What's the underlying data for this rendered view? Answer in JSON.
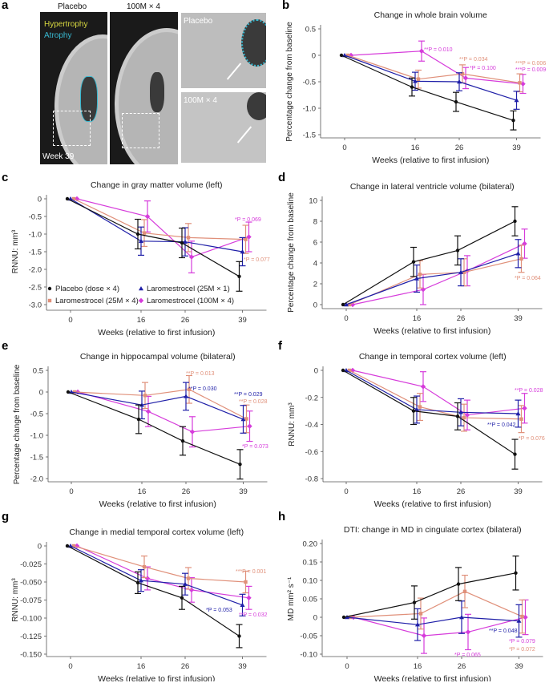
{
  "colors": {
    "placebo": "#111111",
    "lar25x1": "#1f1fa8",
    "lar25x4": "#e0907a",
    "lar100x4": "#d63cdb",
    "hypertrophy": "#d8d840",
    "atrophy": "#38b8d0"
  },
  "panel_a": {
    "label": "a",
    "col1_title": "Placebo",
    "col2_title": "100M × 4",
    "legend_hypertrophy": "Hypertrophy",
    "legend_atrophy": "Atrophy",
    "timepoint": "Week 39",
    "inset_top_label": "Placebo",
    "inset_bottom_label": "100M × 4"
  },
  "legend": [
    {
      "key": "placebo",
      "label": "Placebo (dose × 4)",
      "marker": "circle"
    },
    {
      "key": "lar25x1",
      "label": "Laromestrocel (25M × 1)",
      "marker": "triangle"
    },
    {
      "key": "lar25x4",
      "label": "Laromestrocel (25M × 4)",
      "marker": "square"
    },
    {
      "key": "lar100x4",
      "label": "Laromestrocel (100M × 4)",
      "marker": "diamond"
    }
  ],
  "chart_data": [
    {
      "panel": "b",
      "type": "line",
      "title": "Change in whole brain volume",
      "xlabel": "Weeks (relative to first infusion)",
      "ylabel": "Percentage change from baseline",
      "x": [
        0,
        16,
        26,
        39
      ],
      "xticks": [
        "0",
        "16",
        "26",
        "39"
      ],
      "ylim": [
        -1.5,
        0.5
      ],
      "yticks": [
        0.5,
        0,
        -0.5,
        -1.0,
        -1.5
      ],
      "yticklabels": [
        "0.5",
        "0",
        "-0.5",
        "-1.0",
        "-1.5"
      ],
      "series": [
        {
          "key": "placebo",
          "values": [
            0,
            -0.6,
            -0.88,
            -1.23
          ],
          "err": [
            0,
            0.17,
            0.18,
            0.18
          ]
        },
        {
          "key": "lar25x1",
          "values": [
            0,
            -0.49,
            -0.5,
            -0.85
          ],
          "err": [
            0,
            0.17,
            0.17,
            0.17
          ]
        },
        {
          "key": "lar25x4",
          "values": [
            0,
            -0.45,
            -0.35,
            -0.52
          ],
          "err": [
            0,
            0.17,
            0.17,
            0.17
          ]
        },
        {
          "key": "lar100x4",
          "values": [
            0,
            0.08,
            -0.43,
            -0.54
          ],
          "err": [
            0,
            0.19,
            0.2,
            0.18
          ]
        }
      ],
      "annotations": [
        {
          "text": "**P = 0.010",
          "key": "lar100x4"
        },
        {
          "text": "**P = 0.034",
          "key": "lar25x4"
        },
        {
          "text": "*P = 0.100",
          "key": "lar100x4"
        },
        {
          "text": "***P = 0.006",
          "key": "lar25x4"
        },
        {
          "text": "***P = 0.009",
          "key": "lar100x4"
        }
      ]
    },
    {
      "panel": "c",
      "type": "line",
      "title": "Change in gray matter volume (left)",
      "xlabel": "Weeks (relative to first infusion)",
      "ylabel": "RNNU: mm³",
      "x": [
        0,
        16,
        26,
        39
      ],
      "xticks": [
        "0",
        "16",
        "26",
        "39"
      ],
      "ylim": [
        -3.0,
        0
      ],
      "yticks": [
        0,
        -0.5,
        -1.0,
        -1.5,
        -2.0,
        -2.5,
        -3.0
      ],
      "yticklabels": [
        "0",
        "-0.5",
        "-1.0",
        "-1.5",
        "-2.0",
        "-2.5",
        "-3.0"
      ],
      "series": [
        {
          "key": "placebo",
          "values": [
            0,
            -1.0,
            -1.25,
            -2.2
          ],
          "err": [
            0,
            0.42,
            0.42,
            0.42
          ]
        },
        {
          "key": "lar25x1",
          "values": [
            0,
            -1.2,
            -1.22,
            -1.5
          ],
          "err": [
            0,
            0.4,
            0.4,
            0.4
          ]
        },
        {
          "key": "lar25x4",
          "values": [
            0,
            -0.97,
            -1.1,
            -1.15
          ],
          "err": [
            0,
            0.38,
            0.4,
            0.4
          ]
        },
        {
          "key": "lar100x4",
          "values": [
            0,
            -0.5,
            -1.65,
            -1.08
          ],
          "err": [
            0,
            0.44,
            0.45,
            0.42
          ]
        }
      ],
      "annotations": [
        {
          "text": "*P = 0.069",
          "key": "lar100x4"
        },
        {
          "text": "*P = 0.077",
          "key": "lar25x4"
        }
      ],
      "legend": "bottom-left"
    },
    {
      "panel": "d",
      "type": "line",
      "title": "Change in lateral ventricle volume (bilateral)",
      "xlabel": "Weeks (relative to first infusion)",
      "ylabel": "Percentage change from baseline",
      "x": [
        0,
        16,
        26,
        39
      ],
      "xticks": [
        "0",
        "16",
        "26",
        "39"
      ],
      "ylim": [
        0,
        10
      ],
      "yticks": [
        10,
        8,
        6,
        4,
        2,
        0
      ],
      "yticklabels": [
        "10",
        "8",
        "6",
        "4",
        "2",
        "0"
      ],
      "series": [
        {
          "key": "placebo",
          "values": [
            0,
            4.1,
            5.2,
            8.0
          ],
          "err": [
            0,
            1.4,
            1.4,
            1.4
          ]
        },
        {
          "key": "lar25x1",
          "values": [
            0,
            2.5,
            3.1,
            4.9
          ],
          "err": [
            0,
            1.3,
            1.3,
            1.35
          ]
        },
        {
          "key": "lar25x4",
          "values": [
            0,
            2.9,
            3.1,
            4.4
          ],
          "err": [
            0,
            1.3,
            1.3,
            1.3
          ]
        },
        {
          "key": "lar100x4",
          "values": [
            0,
            1.45,
            3.25,
            5.85
          ],
          "err": [
            0,
            1.45,
            1.45,
            1.4
          ]
        }
      ],
      "annotations": [
        {
          "text": "*P = 0.064",
          "key": "lar25x4"
        }
      ]
    },
    {
      "panel": "e",
      "type": "line",
      "title": "Change in hippocampal volume (bilateral)",
      "xlabel": "Weeks (relative to first infusion)",
      "ylabel": "Percentage change from baseline",
      "x": [
        0,
        16,
        26,
        39
      ],
      "xticks": [
        "0",
        "16",
        "26",
        "39"
      ],
      "ylim": [
        -2.0,
        0.5
      ],
      "yticks": [
        0.5,
        0,
        -0.5,
        -1.0,
        -1.5,
        -2.0
      ],
      "yticklabels": [
        "0.5",
        "0",
        "-0.5",
        "-1.0",
        "-1.5",
        "-2.0"
      ],
      "series": [
        {
          "key": "placebo",
          "values": [
            0,
            -0.63,
            -1.13,
            -1.67
          ],
          "err": [
            0,
            0.33,
            0.33,
            0.34
          ]
        },
        {
          "key": "lar25x1",
          "values": [
            0,
            -0.3,
            -0.1,
            -0.63
          ],
          "err": [
            0,
            0.32,
            0.32,
            0.32
          ]
        },
        {
          "key": "lar25x4",
          "values": [
            0,
            -0.08,
            0.06,
            -0.62
          ],
          "err": [
            0,
            0.3,
            0.32,
            0.32
          ]
        },
        {
          "key": "lar100x4",
          "values": [
            0,
            -0.45,
            -0.92,
            -0.79
          ],
          "err": [
            0,
            0.35,
            0.35,
            0.35
          ]
        }
      ],
      "annotations": [
        {
          "text": "**P = 0.013",
          "key": "lar25x4"
        },
        {
          "text": "**P = 0.030",
          "key": "lar25x1"
        },
        {
          "text": "**P = 0.029",
          "key": "lar25x1"
        },
        {
          "text": "**P = 0.028",
          "key": "lar25x4"
        },
        {
          "text": "*P = 0.073",
          "key": "lar100x4"
        }
      ]
    },
    {
      "panel": "f",
      "type": "line",
      "title": "Change in temporal cortex volume (left)",
      "xlabel": "Weeks (relative to first infusion)",
      "ylabel": "RNNU: mm³",
      "x": [
        0,
        16,
        26,
        39
      ],
      "xticks": [
        "0",
        "16",
        "26",
        "39"
      ],
      "ylim": [
        -0.8,
        0
      ],
      "yticks": [
        0,
        -0.2,
        -0.4,
        -0.6,
        -0.8
      ],
      "yticklabels": [
        "0",
        "-0.2",
        "-0.4",
        "-0.6",
        "-0.8"
      ],
      "series": [
        {
          "key": "placebo",
          "values": [
            0,
            -0.3,
            -0.34,
            -0.62
          ],
          "err": [
            0,
            0.1,
            0.1,
            0.11
          ]
        },
        {
          "key": "lar25x1",
          "values": [
            0,
            -0.29,
            -0.31,
            -0.32
          ],
          "err": [
            0,
            0.1,
            0.1,
            0.1
          ]
        },
        {
          "key": "lar25x4",
          "values": [
            0,
            -0.27,
            -0.35,
            -0.36
          ],
          "err": [
            0,
            0.1,
            0.1,
            0.1
          ]
        },
        {
          "key": "lar100x4",
          "values": [
            0,
            -0.12,
            -0.33,
            -0.28
          ],
          "err": [
            0,
            0.11,
            0.11,
            0.11
          ]
        }
      ],
      "annotations": [
        {
          "text": "**P = 0.028",
          "key": "lar100x4"
        },
        {
          "text": "**P = 0.042",
          "key": "lar25x1"
        },
        {
          "text": "*P = 0.076",
          "key": "lar25x4"
        }
      ]
    },
    {
      "panel": "g",
      "type": "line",
      "title": "Change in medial temporal cortex volume (left)",
      "xlabel": "Weeks (relative to first infusion)",
      "ylabel": "RNNU: mm³",
      "x": [
        0,
        16,
        26,
        39
      ],
      "xticks": [
        "0",
        "16",
        "26",
        "39"
      ],
      "ylim": [
        -0.15,
        0
      ],
      "yticks": [
        0,
        -0.025,
        -0.05,
        -0.075,
        -0.1,
        -0.125,
        -0.15
      ],
      "yticklabels": [
        "0",
        "-0.025",
        "-0.050",
        "-0.075",
        "-0.100",
        "-0.125",
        "-0.150"
      ],
      "series": [
        {
          "key": "placebo",
          "values": [
            0,
            -0.051,
            -0.072,
            -0.125
          ],
          "err": [
            0,
            0.015,
            0.016,
            0.016
          ]
        },
        {
          "key": "lar25x1",
          "values": [
            0,
            -0.048,
            -0.053,
            -0.082
          ],
          "err": [
            0,
            0.015,
            0.015,
            0.015
          ]
        },
        {
          "key": "lar25x4",
          "values": [
            0,
            -0.029,
            -0.045,
            -0.05
          ],
          "err": [
            0,
            0.015,
            0.015,
            0.015
          ]
        },
        {
          "key": "lar100x4",
          "values": [
            0,
            -0.045,
            -0.061,
            -0.072
          ],
          "err": [
            0,
            0.016,
            0.017,
            0.016
          ]
        }
      ],
      "annotations": [
        {
          "text": "***P = 0.001",
          "key": "lar25x4"
        },
        {
          "text": "*P = 0.053",
          "key": "lar25x1"
        },
        {
          "text": "**P = 0.032",
          "key": "lar100x4"
        }
      ]
    },
    {
      "panel": "h",
      "type": "line",
      "title": "DTI: change in MD in cingulate cortex (bilateral)",
      "xlabel": "Weeks (relative to first infusion)",
      "ylabel": "MD mm² s⁻¹",
      "x": [
        0,
        16,
        26,
        39
      ],
      "xticks": [
        "0",
        "16",
        "26",
        "39"
      ],
      "ylim": [
        -0.1,
        0.2
      ],
      "yticks": [
        0.2,
        0.15,
        0.1,
        0.05,
        0,
        -0.05,
        -0.1
      ],
      "yticklabels": [
        "0.20",
        "0.15",
        "0.10",
        "0.05",
        "0",
        "-0.05",
        "-0.10"
      ],
      "series": [
        {
          "key": "placebo",
          "values": [
            0,
            0.04,
            0.09,
            0.12
          ],
          "err": [
            0,
            0.045,
            0.045,
            0.046
          ]
        },
        {
          "key": "lar25x1",
          "values": [
            0,
            -0.02,
            0,
            -0.01
          ],
          "err": [
            0,
            0.043,
            0.044,
            0.044
          ]
        },
        {
          "key": "lar25x4",
          "values": [
            0,
            0.01,
            0.07,
            0.002
          ],
          "err": [
            0,
            0.042,
            0.044,
            0.045
          ]
        },
        {
          "key": "lar100x4",
          "values": [
            0,
            -0.05,
            -0.04,
            0
          ],
          "err": [
            0,
            0.048,
            0.048,
            0.047
          ]
        }
      ],
      "annotations": [
        {
          "text": "*P = 0.065",
          "key": "lar100x4"
        },
        {
          "text": "**P = 0.048",
          "key": "lar25x1"
        },
        {
          "text": "*P = 0.079",
          "key": "lar100x4"
        },
        {
          "text": "*P = 0.072",
          "key": "lar25x4"
        }
      ]
    }
  ]
}
